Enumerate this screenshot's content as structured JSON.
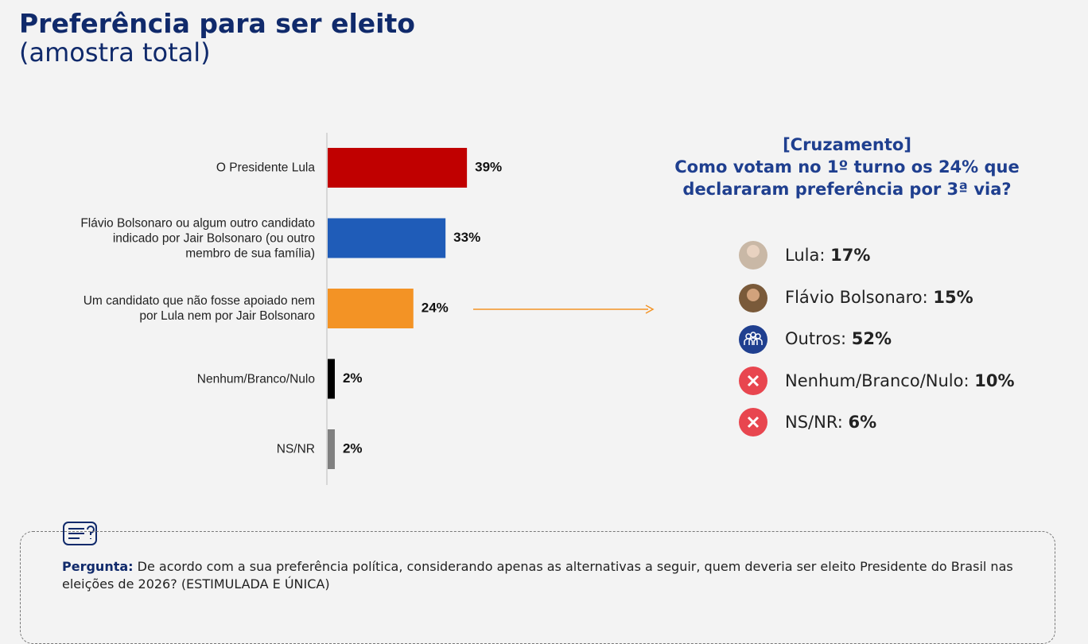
{
  "header": {
    "title": "Preferência para ser eleito",
    "subtitle": "(amostra total)"
  },
  "chart_data": {
    "type": "bar",
    "orientation": "horizontal",
    "categories": [
      "O Presidente Lula",
      "Flávio Bolsonaro ou algum outro candidato indicado por Jair Bolsonaro (ou outro membro de sua família)",
      "Um candidato que não fosse apoiado nem por Lula nem por Jair Bolsonaro",
      "Nenhum/Branco/Nulo",
      "NS/NR"
    ],
    "values": [
      39,
      33,
      24,
      2,
      2
    ],
    "value_labels": [
      "39%",
      "33%",
      "24%",
      "2%",
      "2%"
    ],
    "colors": [
      "#c00000",
      "#1f5cb8",
      "#f39325",
      "#000000",
      "#808080"
    ]
  },
  "crosstab": {
    "title": "[Cruzamento]",
    "subtitle": "Como votam no 1º turno os 24% que declararam preferência por 3ª via?",
    "items": [
      {
        "label": "Lula:",
        "value": "17%"
      },
      {
        "label": "Flávio Bolsonaro:",
        "value": "15%"
      },
      {
        "label": "Outros:",
        "value": "52%"
      },
      {
        "label": "Nenhum/Branco/Nulo:",
        "value": "10%"
      },
      {
        "label": "NS/NR:",
        "value": "6%"
      }
    ]
  },
  "footer": {
    "label": "Pergunta:",
    "text": "De acordo com a sua preferência política, considerando apenas as alternativas a seguir, quem deveria ser eleito Presidente do Brasil nas eleições de 2026? (ESTIMULADA E ÚNICA)"
  }
}
